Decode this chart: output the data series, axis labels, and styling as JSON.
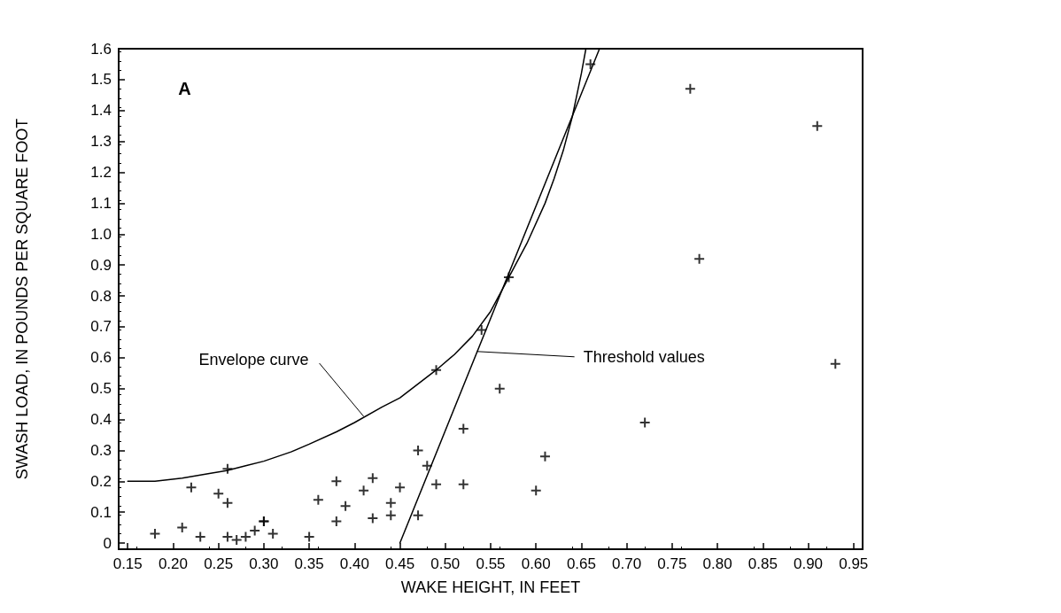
{
  "chart_data": {
    "type": "scatter",
    "xlabel": "WAKE HEIGHT, IN FEET",
    "ylabel": "SWASH LOAD, IN POUNDS PER SQUARE FOOT",
    "xlim": [
      0.14,
      0.96
    ],
    "ylim": [
      -0.02,
      1.6
    ],
    "xticks": [
      0.15,
      {
        "value": 0.2,
        "label": "0.20"
      },
      0.25,
      {
        "value": 0.3,
        "label": "0.30"
      },
      0.35,
      {
        "value": 0.4,
        "label": "0.40"
      },
      0.45,
      {
        "value": 0.5,
        "label": "0.50"
      },
      0.55,
      {
        "value": 0.6,
        "label": "0.60"
      },
      0.65,
      {
        "value": 0.7,
        "label": "0.70"
      },
      0.75,
      {
        "value": 0.8,
        "label": "0.80"
      },
      0.85,
      {
        "value": 0.9,
        "label": "0.90"
      },
      0.95
    ],
    "yticks": [
      0,
      0.1,
      0.2,
      0.3,
      0.4,
      0.5,
      0.6,
      0.7,
      0.8,
      0.9,
      {
        "value": 1,
        "label": "1.0"
      },
      1.1,
      1.2,
      1.3,
      1.4,
      1.5,
      1.6
    ],
    "grid": false,
    "annotations": [
      "A",
      {
        "text": "Envelope curve",
        "x": 0.41,
        "y": 0.41
      },
      {
        "text": "Threshold values",
        "x": 0.535,
        "y": 0.62
      }
    ],
    "series": [
      {
        "type": "scatter",
        "marker": "cross",
        "color": "#000000",
        "x": [
          0.18,
          0.21,
          0.22,
          0.23,
          0.25,
          0.26,
          0.26,
          0.26,
          0.27,
          0.28,
          0.29,
          0.3,
          0.3,
          0.31,
          0.35,
          0.36,
          0.38,
          0.38,
          0.39,
          0.41,
          0.42,
          0.42,
          0.44,
          0.44,
          0.45,
          0.47,
          0.47,
          0.48,
          0.49,
          0.49,
          0.52,
          0.52,
          0.54,
          0.56,
          0.57,
          0.6,
          0.61,
          0.66,
          0.72,
          0.77,
          0.78,
          0.91,
          0.93
        ],
        "values": [
          0.03,
          0.05,
          0.18,
          0.02,
          0.16,
          0.24,
          0.13,
          0.02,
          0.01,
          0.02,
          0.04,
          0.07,
          0.07,
          0.03,
          0.02,
          0.14,
          0.2,
          0.07,
          0.12,
          0.17,
          0.21,
          0.08,
          0.13,
          0.09,
          0.18,
          0.3,
          0.09,
          0.25,
          0.19,
          0.56,
          0.37,
          0.19,
          0.69,
          0.5,
          0.86,
          0.17,
          0.28,
          1.55,
          0.39,
          1.47,
          0.92,
          1.35,
          0.58
        ]
      },
      {
        "type": "line",
        "marker": "none",
        "line_style": "solid",
        "color": "#000000",
        "x": [
          0.15,
          0.18,
          0.21,
          0.24,
          0.26,
          0.28,
          0.3,
          0.33,
          0.35,
          0.38,
          0.4,
          0.43,
          0.45,
          0.47,
          0.49,
          0.51,
          0.53,
          0.55,
          0.57,
          0.59,
          0.61,
          0.62,
          0.63,
          0.64,
          0.645,
          0.65,
          0.655
        ],
        "values": [
          0.2,
          0.2,
          0.21,
          0.225,
          0.235,
          0.25,
          0.265,
          0.295,
          0.32,
          0.36,
          0.39,
          0.44,
          0.47,
          0.515,
          0.56,
          0.61,
          0.67,
          0.75,
          0.86,
          0.97,
          1.1,
          1.18,
          1.27,
          1.38,
          1.45,
          1.52,
          1.6
        ]
      },
      {
        "type": "line",
        "marker": "none",
        "line_style": "solid",
        "color": "#000000",
        "x": [
          0.45,
          0.67
        ],
        "values": [
          0,
          1.6
        ]
      }
    ]
  }
}
